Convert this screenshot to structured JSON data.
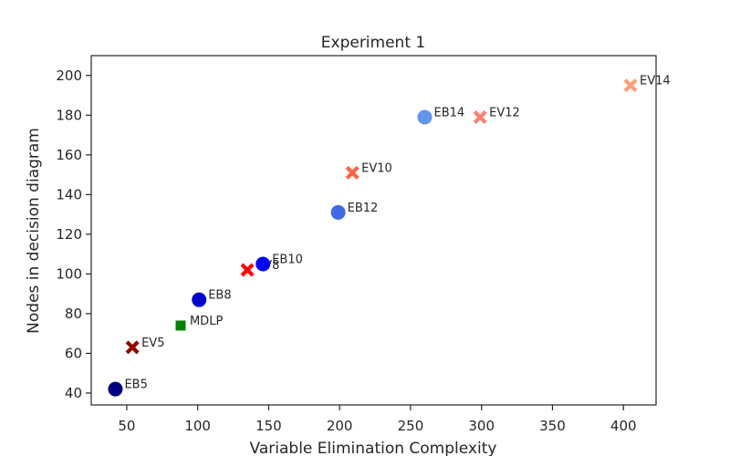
{
  "chart_data": {
    "type": "scatter",
    "title": "Experiment 1",
    "xlabel": "Variable Elimination Complexity",
    "ylabel": "Nodes in decision diagram",
    "xlim": [
      25,
      423
    ],
    "ylim": [
      34,
      210
    ],
    "xticks": [
      50,
      100,
      150,
      200,
      250,
      300,
      350,
      400
    ],
    "yticks": [
      40,
      60,
      80,
      100,
      120,
      140,
      160,
      180,
      200
    ],
    "grid": false,
    "legend": "none",
    "points": [
      {
        "label": "EB5",
        "x": 42,
        "y": 42,
        "marker": "circle",
        "color": "#000080"
      },
      {
        "label": "EV5",
        "x": 54,
        "y": 63,
        "marker": "x",
        "color": "#8b0000"
      },
      {
        "label": "MDLP",
        "x": 88,
        "y": 74,
        "marker": "square",
        "color": "#008000"
      },
      {
        "label": "EB8",
        "x": 101,
        "y": 87,
        "marker": "circle",
        "color": "#0000cd"
      },
      {
        "label": "EV8",
        "x": 135,
        "y": 102,
        "marker": "x",
        "color": "#ff0000"
      },
      {
        "label": "EB10",
        "x": 146,
        "y": 105,
        "marker": "circle",
        "color": "#0000ff"
      },
      {
        "label": "EB12",
        "x": 199,
        "y": 131,
        "marker": "circle",
        "color": "#4169e1"
      },
      {
        "label": "EV10",
        "x": 209,
        "y": 151,
        "marker": "x",
        "color": "#ff6347"
      },
      {
        "label": "EB14",
        "x": 260,
        "y": 179,
        "marker": "circle",
        "color": "#6495ed"
      },
      {
        "label": "EV12",
        "x": 299,
        "y": 179,
        "marker": "x",
        "color": "#fa8072"
      },
      {
        "label": "EV14",
        "x": 405,
        "y": 195,
        "marker": "x",
        "color": "#ffa07a"
      }
    ]
  }
}
